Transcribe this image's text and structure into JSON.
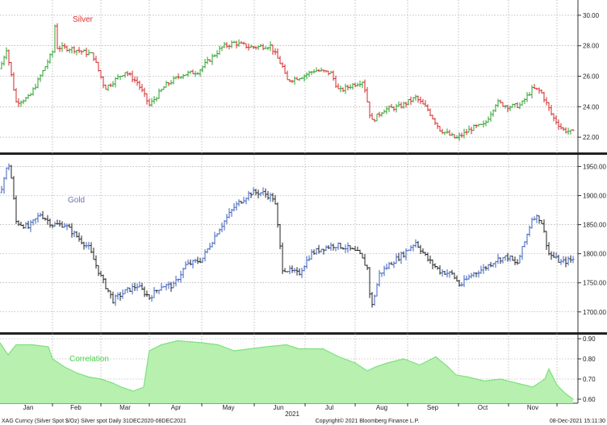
{
  "chart_data": [
    {
      "type": "ohlc",
      "title": "Silver",
      "series": [
        {
          "name": "Silver",
          "color_up": "#2ca02c",
          "color_down": "#d62728"
        }
      ],
      "ylim": [
        21.0,
        31.0
      ],
      "yticks": [
        "30.00",
        "28.00",
        "26.00",
        "24.00",
        "22.00"
      ],
      "title_color": "#e0322e",
      "trend": [
        [
          0,
          26.5
        ],
        [
          8,
          27.8
        ],
        [
          20,
          24.3
        ],
        [
          36,
          24.6
        ],
        [
          50,
          26.0
        ],
        [
          65,
          27.6
        ],
        [
          67,
          30.0
        ],
        [
          70,
          27.9
        ],
        [
          90,
          27.8
        ],
        [
          115,
          27.4
        ],
        [
          130,
          25.2
        ],
        [
          155,
          26.3
        ],
        [
          170,
          25.6
        ],
        [
          185,
          24.1
        ],
        [
          205,
          25.4
        ],
        [
          225,
          26.1
        ],
        [
          245,
          26.3
        ],
        [
          260,
          27.1
        ],
        [
          275,
          27.9
        ],
        [
          290,
          28.2
        ],
        [
          310,
          27.9
        ],
        [
          335,
          28.0
        ],
        [
          350,
          26.6
        ],
        [
          355,
          25.7
        ],
        [
          375,
          26.0
        ],
        [
          390,
          26.4
        ],
        [
          410,
          26.2
        ],
        [
          420,
          25.0
        ],
        [
          435,
          25.4
        ],
        [
          450,
          25.7
        ],
        [
          460,
          23.0
        ],
        [
          475,
          23.8
        ],
        [
          495,
          24.0
        ],
        [
          515,
          24.6
        ],
        [
          530,
          23.8
        ],
        [
          545,
          22.5
        ],
        [
          565,
          21.9
        ],
        [
          585,
          22.6
        ],
        [
          600,
          22.8
        ],
        [
          615,
          24.3
        ],
        [
          630,
          24.0
        ],
        [
          645,
          24.1
        ],
        [
          660,
          25.2
        ],
        [
          670,
          25.0
        ],
        [
          685,
          23.3
        ],
        [
          697,
          22.5
        ],
        [
          710,
          22.3
        ]
      ]
    },
    {
      "type": "ohlc",
      "title": "Gold",
      "series": [
        {
          "name": "Gold",
          "color_up": "#3b62c2",
          "color_down": "#222222"
        }
      ],
      "ylim": [
        1665,
        1970
      ],
      "yticks": [
        "1950.00",
        "1900.00",
        "1850.00",
        "1800.00",
        "1750.00",
        "1700.00"
      ],
      "title_color": "#6b73b8",
      "trend": [
        [
          0,
          1905
        ],
        [
          8,
          1945
        ],
        [
          12,
          1955
        ],
        [
          20,
          1855
        ],
        [
          35,
          1845
        ],
        [
          50,
          1868
        ],
        [
          65,
          1850
        ],
        [
          80,
          1850
        ],
        [
          95,
          1830
        ],
        [
          110,
          1810
        ],
        [
          125,
          1760
        ],
        [
          140,
          1720
        ],
        [
          155,
          1735
        ],
        [
          170,
          1745
        ],
        [
          185,
          1725
        ],
        [
          200,
          1745
        ],
        [
          215,
          1745
        ],
        [
          230,
          1780
        ],
        [
          250,
          1790
        ],
        [
          270,
          1840
        ],
        [
          290,
          1880
        ],
        [
          310,
          1905
        ],
        [
          325,
          1905
        ],
        [
          340,
          1895
        ],
        [
          350,
          1775
        ],
        [
          360,
          1770
        ],
        [
          370,
          1765
        ],
        [
          385,
          1800
        ],
        [
          400,
          1810
        ],
        [
          415,
          1815
        ],
        [
          430,
          1810
        ],
        [
          445,
          1800
        ],
        [
          455,
          1775
        ],
        [
          460,
          1705
        ],
        [
          470,
          1765
        ],
        [
          485,
          1785
        ],
        [
          500,
          1800
        ],
        [
          515,
          1820
        ],
        [
          530,
          1790
        ],
        [
          545,
          1770
        ],
        [
          560,
          1765
        ],
        [
          570,
          1745
        ],
        [
          585,
          1765
        ],
        [
          600,
          1775
        ],
        [
          615,
          1790
        ],
        [
          630,
          1795
        ],
        [
          640,
          1780
        ],
        [
          650,
          1820
        ],
        [
          660,
          1865
        ],
        [
          670,
          1860
        ],
        [
          680,
          1800
        ],
        [
          695,
          1785
        ],
        [
          710,
          1790
        ]
      ]
    },
    {
      "type": "area",
      "title": "Correlation",
      "series": [
        {
          "name": "Correlation",
          "color": "#b8f0b0",
          "line": "#7fe07f"
        }
      ],
      "ylim": [
        0.58,
        0.92
      ],
      "yticks": [
        "0.90",
        "0.80",
        "0.70",
        "0.60"
      ],
      "title_color": "#4ad04a",
      "x": [
        0,
        10,
        20,
        40,
        60,
        65,
        80,
        95,
        110,
        125,
        140,
        150,
        165,
        178,
        185,
        200,
        220,
        250,
        270,
        290,
        310,
        330,
        355,
        370,
        400,
        420,
        440,
        455,
        465,
        480,
        500,
        520,
        540,
        555,
        565,
        580,
        600,
        620,
        640,
        660,
        675,
        680,
        690,
        700,
        710
      ],
      "values": [
        0.88,
        0.82,
        0.87,
        0.87,
        0.86,
        0.8,
        0.76,
        0.73,
        0.71,
        0.7,
        0.68,
        0.66,
        0.64,
        0.66,
        0.84,
        0.87,
        0.89,
        0.88,
        0.87,
        0.84,
        0.85,
        0.86,
        0.87,
        0.85,
        0.85,
        0.81,
        0.78,
        0.74,
        0.76,
        0.78,
        0.8,
        0.77,
        0.81,
        0.76,
        0.72,
        0.71,
        0.69,
        0.7,
        0.68,
        0.66,
        0.7,
        0.75,
        0.67,
        0.63,
        0.6
      ]
    }
  ],
  "x_axis": {
    "months": [
      "Jan",
      "Feb",
      "Mar",
      "Apr",
      "May",
      "Jun",
      "Jul",
      "Aug",
      "Sep",
      "Oct",
      "Nov"
    ],
    "year": "2021"
  },
  "footer": {
    "left": "XAG Curncy (Silver Spot  $/Oz) Silver spot  Daily 31DEC2020-08DEC2021",
    "center": "Copyright© 2021 Bloomberg Finance L.P.",
    "right": "08-Dec-2021 15:11:30"
  }
}
